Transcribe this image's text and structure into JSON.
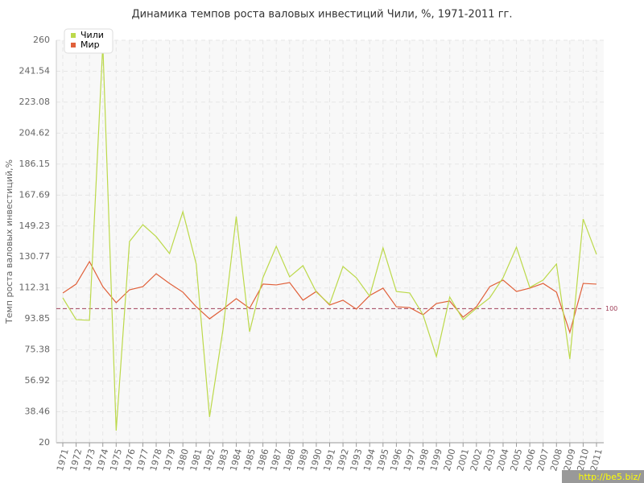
{
  "chart_data": {
    "type": "line",
    "title": "Динамика темпов роста валовых инвестиций Чили, %, 1971-2011 гг.",
    "y_label": "Темп роста валовых инвестиций,%",
    "categories": [
      "1971",
      "1972",
      "1973",
      "1974",
      "1975",
      "1976",
      "1977",
      "1978",
      "1979",
      "1980",
      "1981",
      "1982",
      "1983",
      "1984",
      "1985",
      "1986",
      "1987",
      "1988",
      "1989",
      "1990",
      "1991",
      "1992",
      "1993",
      "1994",
      "1995",
      "1996",
      "1997",
      "1998",
      "1999",
      "2000",
      "2001",
      "2002",
      "2003",
      "2004",
      "2005",
      "2006",
      "2007",
      "2008",
      "2009",
      "2010",
      "2011"
    ],
    "series": [
      {
        "name": "Чили",
        "color": "#bcd94a",
        "values": [
          106.4,
          93.4,
          93,
          257.6,
          27.2,
          140,
          150,
          142.9,
          132.8,
          157.8,
          126.6,
          35.4,
          87.2,
          154.9,
          86.2,
          118.4,
          137.1,
          118.9,
          125.6,
          109.8,
          102.6,
          125.1,
          118.4,
          107.4,
          136.2,
          110.2,
          109.3,
          96.3,
          71.4,
          106.9,
          93.4,
          100.2,
          106.4,
          118.4,
          136.6,
          112.6,
          117,
          126.6,
          69.9,
          153.4,
          132.3
        ]
      },
      {
        "name": "Мир",
        "color": "#e0603a",
        "values": [
          109.3,
          114.6,
          128,
          113.1,
          103.5,
          111.2,
          113.1,
          120.8,
          115,
          109.8,
          101.1,
          93.9,
          99.7,
          105.9,
          100.2,
          114.6,
          114.1,
          115.5,
          105,
          110.2,
          102.1,
          105,
          99.7,
          107.8,
          112.2,
          101.1,
          100.6,
          96.3,
          103,
          104.5,
          94.9,
          101.1,
          113.1,
          117,
          110.2,
          112.2,
          115,
          109.8,
          85.8,
          115,
          114.6
        ]
      }
    ],
    "reference_line": 100,
    "ylim": [
      20,
      260
    ],
    "yticks": [
      20,
      38.46,
      56.92,
      75.38,
      93.85,
      112.31,
      130.77,
      149.23,
      167.69,
      186.15,
      204.62,
      223.08,
      241.54,
      260
    ],
    "grid": true,
    "legend": "top-left",
    "watermark": "http://be5.biz/"
  }
}
